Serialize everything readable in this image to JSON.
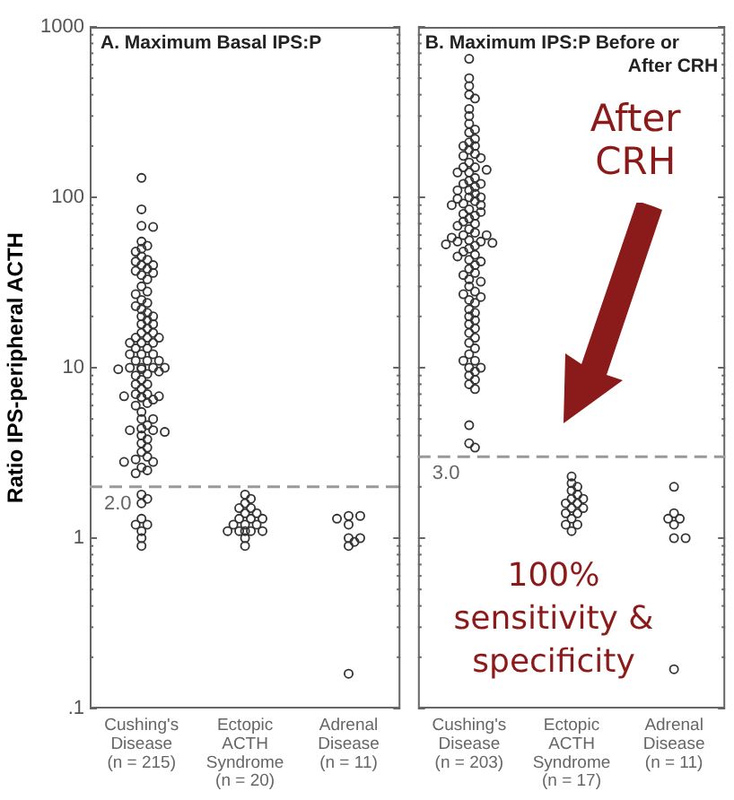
{
  "chart_data": [
    {
      "type": "scatter",
      "title": "A. Maximum Basal IPS:P",
      "ylabel": "Ratio IPS-peripheral ACTH",
      "categories": [
        "Cushing's Disease (n = 215)",
        "Ectopic ACTH Syndrome (n = 20)",
        "Adrenal Disease (n = 11)"
      ],
      "series": [
        {
          "color": "#333333",
          "x": [
            "Cushing's Disease (n = 215)",
            "Cushing's Disease (n = 215)",
            "Cushing's Disease (n = 215)",
            "Cushing's Disease (n = 215)",
            "Cushing's Disease (n = 215)",
            "Cushing's Disease (n = 215)",
            "Cushing's Disease (n = 215)",
            "Cushing's Disease (n = 215)",
            "Cushing's Disease (n = 215)",
            "Cushing's Disease (n = 215)",
            "Cushing's Disease (n = 215)",
            "Cushing's Disease (n = 215)",
            "Cushing's Disease (n = 215)",
            "Cushing's Disease (n = 215)",
            "Cushing's Disease (n = 215)",
            "Cushing's Disease (n = 215)",
            "Cushing's Disease (n = 215)",
            "Cushing's Disease (n = 215)",
            "Cushing's Disease (n = 215)",
            "Cushing's Disease (n = 215)",
            "Cushing's Disease (n = 215)",
            "Cushing's Disease (n = 215)",
            "Cushing's Disease (n = 215)",
            "Cushing's Disease (n = 215)",
            "Cushing's Disease (n = 215)",
            "Cushing's Disease (n = 215)",
            "Cushing's Disease (n = 215)",
            "Cushing's Disease (n = 215)",
            "Cushing's Disease (n = 215)",
            "Cushing's Disease (n = 215)",
            "Cushing's Disease (n = 215)",
            "Cushing's Disease (n = 215)",
            "Cushing's Disease (n = 215)",
            "Cushing's Disease (n = 215)",
            "Cushing's Disease (n = 215)",
            "Cushing's Disease (n = 215)",
            "Cushing's Disease (n = 215)",
            "Cushing's Disease (n = 215)",
            "Cushing's Disease (n = 215)",
            "Cushing's Disease (n = 215)",
            "Cushing's Disease (n = 215)",
            "Cushing's Disease (n = 215)",
            "Cushing's Disease (n = 215)",
            "Cushing's Disease (n = 215)",
            "Cushing's Disease (n = 215)",
            "Cushing's Disease (n = 215)",
            "Cushing's Disease (n = 215)",
            "Cushing's Disease (n = 215)",
            "Cushing's Disease (n = 215)",
            "Cushing's Disease (n = 215)",
            "Cushing's Disease (n = 215)",
            "Cushing's Disease (n = 215)",
            "Cushing's Disease (n = 215)",
            "Cushing's Disease (n = 215)",
            "Cushing's Disease (n = 215)",
            "Cushing's Disease (n = 215)",
            "Cushing's Disease (n = 215)",
            "Cushing's Disease (n = 215)",
            "Cushing's Disease (n = 215)",
            "Cushing's Disease (n = 215)",
            "Cushing's Disease (n = 215)",
            "Cushing's Disease (n = 215)",
            "Cushing's Disease (n = 215)",
            "Cushing's Disease (n = 215)",
            "Cushing's Disease (n = 215)",
            "Cushing's Disease (n = 215)",
            "Cushing's Disease (n = 215)",
            "Cushing's Disease (n = 215)",
            "Cushing's Disease (n = 215)",
            "Cushing's Disease (n = 215)",
            "Cushing's Disease (n = 215)",
            "Cushing's Disease (n = 215)",
            "Cushing's Disease (n = 215)",
            "Cushing's Disease (n = 215)",
            "Cushing's Disease (n = 215)",
            "Cushing's Disease (n = 215)",
            "Cushing's Disease (n = 215)",
            "Cushing's Disease (n = 215)",
            "Cushing's Disease (n = 215)",
            "Cushing's Disease (n = 215)",
            "Cushing's Disease (n = 215)",
            "Cushing's Disease (n = 215)",
            "Cushing's Disease (n = 215)",
            "Cushing's Disease (n = 215)",
            "Cushing's Disease (n = 215)",
            "Cushing's Disease (n = 215)",
            "Cushing's Disease (n = 215)",
            "Cushing's Disease (n = 215)",
            "Cushing's Disease (n = 215)",
            "Cushing's Disease (n = 215)",
            "Cushing's Disease (n = 215)",
            "Cushing's Disease (n = 215)",
            "Cushing's Disease (n = 215)",
            "Cushing's Disease (n = 215)",
            "Cushing's Disease (n = 215)",
            "Cushing's Disease (n = 215)",
            "Cushing's Disease (n = 215)",
            "Cushing's Disease (n = 215)",
            "Cushing's Disease (n = 215)",
            "Ectopic ACTH Syndrome (n = 20)",
            "Ectopic ACTH Syndrome (n = 20)",
            "Ectopic ACTH Syndrome (n = 20)",
            "Ectopic ACTH Syndrome (n = 20)",
            "Ectopic ACTH Syndrome (n = 20)",
            "Ectopic ACTH Syndrome (n = 20)",
            "Ectopic ACTH Syndrome (n = 20)",
            "Ectopic ACTH Syndrome (n = 20)",
            "Ectopic ACTH Syndrome (n = 20)",
            "Ectopic ACTH Syndrome (n = 20)",
            "Ectopic ACTH Syndrome (n = 20)",
            "Ectopic ACTH Syndrome (n = 20)",
            "Ectopic ACTH Syndrome (n = 20)",
            "Ectopic ACTH Syndrome (n = 20)",
            "Ectopic ACTH Syndrome (n = 20)",
            "Ectopic ACTH Syndrome (n = 20)",
            "Ectopic ACTH Syndrome (n = 20)",
            "Ectopic ACTH Syndrome (n = 20)",
            "Ectopic ACTH Syndrome (n = 20)",
            "Ectopic ACTH Syndrome (n = 20)",
            "Adrenal Disease (n = 11)",
            "Adrenal Disease (n = 11)",
            "Adrenal Disease (n = 11)",
            "Adrenal Disease (n = 11)",
            "Adrenal Disease (n = 11)",
            "Adrenal Disease (n = 11)",
            "Adrenal Disease (n = 11)",
            "Adrenal Disease (n = 11)",
            "Adrenal Disease (n = 11)"
          ],
          "values": [
            130,
            85,
            68,
            67,
            55,
            52,
            50,
            48,
            45,
            43,
            42,
            40,
            40,
            38,
            37,
            36,
            35,
            33,
            30,
            28,
            27,
            25,
            24,
            23,
            22,
            21,
            20,
            20,
            19,
            18,
            18,
            17,
            16,
            16,
            15,
            15,
            15,
            14,
            14,
            14,
            13,
            13,
            12,
            12,
            12,
            11,
            11,
            11,
            10,
            10,
            10,
            10,
            9.8,
            9.8,
            9.5,
            9.2,
            9,
            8.5,
            8,
            8,
            7.5,
            7,
            7,
            6.8,
            6.8,
            6.7,
            6.7,
            6.5,
            6.2,
            6,
            5.5,
            5,
            5,
            4.6,
            4.4,
            4.3,
            4.3,
            4.2,
            4,
            3.8,
            3.6,
            3.4,
            3.2,
            3,
            2.9,
            2.8,
            2.8,
            2.6,
            2.5,
            2.4,
            1.8,
            1.7,
            1.6,
            1.3,
            1.2,
            1.2,
            1.1,
            1,
            0.9,
            1.8,
            1.7,
            1.6,
            1.5,
            1.5,
            1.4,
            1.4,
            1.3,
            1.3,
            1.3,
            1.2,
            1.2,
            1.2,
            1.1,
            1.1,
            1.1,
            1.1,
            1.1,
            1,
            0.9,
            1.35,
            1.35,
            1.3,
            1.2,
            1,
            1,
            0.95,
            0.9,
            0.16
          ]
        }
      ],
      "log": "y",
      "ylim": [
        0.1,
        1000
      ],
      "yticks": [
        {
          "value": 0.1,
          "label": ".1"
        },
        {
          "value": 0.2,
          "label": null
        },
        {
          "value": 0.3,
          "label": null
        },
        {
          "value": 0.4,
          "label": null
        },
        {
          "value": 0.5,
          "label": null
        },
        {
          "value": 0.6,
          "label": null
        },
        {
          "value": 0.7,
          "label": null
        },
        {
          "value": 0.8,
          "label": null
        },
        {
          "value": 0.9,
          "label": null
        },
        1,
        {
          "value": 2,
          "label": null
        },
        {
          "value": 3,
          "label": null
        },
        {
          "value": 4,
          "label": null
        },
        {
          "value": 5,
          "label": null
        },
        {
          "value": 6,
          "label": null
        },
        {
          "value": 7,
          "label": null
        },
        {
          "value": 8,
          "label": null
        },
        {
          "value": 9,
          "label": null
        },
        10,
        {
          "value": 20,
          "label": null
        },
        {
          "value": 30,
          "label": null
        },
        {
          "value": 40,
          "label": null
        },
        {
          "value": 50,
          "label": null
        },
        {
          "value": 60,
          "label": null
        },
        {
          "value": 70,
          "label": null
        },
        {
          "value": 80,
          "label": null
        },
        {
          "value": 90,
          "label": null
        },
        100,
        {
          "value": 200,
          "label": null
        },
        {
          "value": 300,
          "label": null
        },
        {
          "value": 400,
          "label": null
        },
        {
          "value": 500,
          "label": null
        },
        {
          "value": 600,
          "label": null
        },
        {
          "value": 700,
          "label": null
        },
        {
          "value": 800,
          "label": null
        },
        {
          "value": 900,
          "label": null
        },
        1000
      ],
      "ref_lines": [
        {
          "axis": "y",
          "value": 2,
          "label": "2.0",
          "color": "#999999",
          "line_style": "dashed"
        }
      ],
      "marker": "circle"
    },
    {
      "type": "scatter",
      "title": "B. Maximum IPS:P Before or After CRH",
      "categories": [
        "Cushing's Disease (n = 203)",
        "Ectopic ACTH Syndrome (n = 17)",
        "Adrenal Disease (n = 11)"
      ],
      "series": [
        {
          "color": "#333333",
          "x": [
            "Cushing's Disease (n = 203)",
            "Cushing's Disease (n = 203)",
            "Cushing's Disease (n = 203)",
            "Cushing's Disease (n = 203)",
            "Cushing's Disease (n = 203)",
            "Cushing's Disease (n = 203)",
            "Cushing's Disease (n = 203)",
            "Cushing's Disease (n = 203)",
            "Cushing's Disease (n = 203)",
            "Cushing's Disease (n = 203)",
            "Cushing's Disease (n = 203)",
            "Cushing's Disease (n = 203)",
            "Cushing's Disease (n = 203)",
            "Cushing's Disease (n = 203)",
            "Cushing's Disease (n = 203)",
            "Cushing's Disease (n = 203)",
            "Cushing's Disease (n = 203)",
            "Cushing's Disease (n = 203)",
            "Cushing's Disease (n = 203)",
            "Cushing's Disease (n = 203)",
            "Cushing's Disease (n = 203)",
            "Cushing's Disease (n = 203)",
            "Cushing's Disease (n = 203)",
            "Cushing's Disease (n = 203)",
            "Cushing's Disease (n = 203)",
            "Cushing's Disease (n = 203)",
            "Cushing's Disease (n = 203)",
            "Cushing's Disease (n = 203)",
            "Cushing's Disease (n = 203)",
            "Cushing's Disease (n = 203)",
            "Cushing's Disease (n = 203)",
            "Cushing's Disease (n = 203)",
            "Cushing's Disease (n = 203)",
            "Cushing's Disease (n = 203)",
            "Cushing's Disease (n = 203)",
            "Cushing's Disease (n = 203)",
            "Cushing's Disease (n = 203)",
            "Cushing's Disease (n = 203)",
            "Cushing's Disease (n = 203)",
            "Cushing's Disease (n = 203)",
            "Cushing's Disease (n = 203)",
            "Cushing's Disease (n = 203)",
            "Cushing's Disease (n = 203)",
            "Cushing's Disease (n = 203)",
            "Cushing's Disease (n = 203)",
            "Cushing's Disease (n = 203)",
            "Cushing's Disease (n = 203)",
            "Cushing's Disease (n = 203)",
            "Cushing's Disease (n = 203)",
            "Cushing's Disease (n = 203)",
            "Cushing's Disease (n = 203)",
            "Cushing's Disease (n = 203)",
            "Cushing's Disease (n = 203)",
            "Cushing's Disease (n = 203)",
            "Cushing's Disease (n = 203)",
            "Cushing's Disease (n = 203)",
            "Cushing's Disease (n = 203)",
            "Cushing's Disease (n = 203)",
            "Cushing's Disease (n = 203)",
            "Cushing's Disease (n = 203)",
            "Cushing's Disease (n = 203)",
            "Cushing's Disease (n = 203)",
            "Cushing's Disease (n = 203)",
            "Cushing's Disease (n = 203)",
            "Cushing's Disease (n = 203)",
            "Cushing's Disease (n = 203)",
            "Cushing's Disease (n = 203)",
            "Cushing's Disease (n = 203)",
            "Cushing's Disease (n = 203)",
            "Cushing's Disease (n = 203)",
            "Cushing's Disease (n = 203)",
            "Cushing's Disease (n = 203)",
            "Cushing's Disease (n = 203)",
            "Cushing's Disease (n = 203)",
            "Cushing's Disease (n = 203)",
            "Cushing's Disease (n = 203)",
            "Cushing's Disease (n = 203)",
            "Cushing's Disease (n = 203)",
            "Cushing's Disease (n = 203)",
            "Cushing's Disease (n = 203)",
            "Cushing's Disease (n = 203)",
            "Cushing's Disease (n = 203)",
            "Cushing's Disease (n = 203)",
            "Cushing's Disease (n = 203)",
            "Cushing's Disease (n = 203)",
            "Cushing's Disease (n = 203)",
            "Cushing's Disease (n = 203)",
            "Cushing's Disease (n = 203)",
            "Cushing's Disease (n = 203)",
            "Cushing's Disease (n = 203)",
            "Cushing's Disease (n = 203)",
            "Cushing's Disease (n = 203)",
            "Cushing's Disease (n = 203)",
            "Cushing's Disease (n = 203)",
            "Cushing's Disease (n = 203)",
            "Cushing's Disease (n = 203)",
            "Cushing's Disease (n = 203)",
            "Cushing's Disease (n = 203)",
            "Cushing's Disease (n = 203)",
            "Ectopic ACTH Syndrome (n = 17)",
            "Ectopic ACTH Syndrome (n = 17)",
            "Ectopic ACTH Syndrome (n = 17)",
            "Ectopic ACTH Syndrome (n = 17)",
            "Ectopic ACTH Syndrome (n = 17)",
            "Ectopic ACTH Syndrome (n = 17)",
            "Ectopic ACTH Syndrome (n = 17)",
            "Ectopic ACTH Syndrome (n = 17)",
            "Ectopic ACTH Syndrome (n = 17)",
            "Ectopic ACTH Syndrome (n = 17)",
            "Ectopic ACTH Syndrome (n = 17)",
            "Ectopic ACTH Syndrome (n = 17)",
            "Ectopic ACTH Syndrome (n = 17)",
            "Ectopic ACTH Syndrome (n = 17)",
            "Ectopic ACTH Syndrome (n = 17)",
            "Ectopic ACTH Syndrome (n = 17)",
            "Ectopic ACTH Syndrome (n = 17)",
            "Adrenal Disease (n = 11)",
            "Adrenal Disease (n = 11)",
            "Adrenal Disease (n = 11)",
            "Adrenal Disease (n = 11)",
            "Adrenal Disease (n = 11)",
            "Adrenal Disease (n = 11)",
            "Adrenal Disease (n = 11)",
            "Adrenal Disease (n = 11)"
          ],
          "values": [
            650,
            500,
            450,
            400,
            380,
            330,
            300,
            270,
            250,
            240,
            220,
            210,
            200,
            200,
            190,
            180,
            175,
            170,
            160,
            150,
            150,
            145,
            140,
            140,
            130,
            125,
            120,
            120,
            115,
            110,
            110,
            105,
            100,
            100,
            98,
            95,
            92,
            90,
            90,
            85,
            82,
            80,
            78,
            75,
            72,
            70,
            68,
            65,
            62,
            60,
            60,
            58,
            56,
            55,
            55,
            54,
            53,
            52,
            50,
            48,
            46,
            45,
            43,
            42,
            40,
            38,
            36,
            35,
            33,
            32,
            30,
            28,
            27,
            26,
            25,
            24,
            22,
            21,
            20,
            19,
            18,
            17,
            16,
            15,
            14,
            13,
            12,
            11,
            11,
            10,
            10,
            9.5,
            9,
            8.5,
            8,
            7.5,
            4.6,
            3.6,
            3.4,
            2.3,
            2.1,
            2,
            1.9,
            1.8,
            1.7,
            1.7,
            1.6,
            1.6,
            1.5,
            1.5,
            1.4,
            1.4,
            1.3,
            1.2,
            1.2,
            1.1,
            2,
            1.4,
            1.3,
            1.3,
            1.2,
            1,
            1,
            0.17
          ]
        }
      ],
      "log": "y",
      "ylim": [
        0.1,
        1000
      ],
      "tick_labels": "x",
      "yticks": [
        0.1,
        {
          "value": 0.2,
          "label": null
        },
        {
          "value": 0.3,
          "label": null
        },
        {
          "value": 0.4,
          "label": null
        },
        {
          "value": 0.5,
          "label": null
        },
        {
          "value": 0.6,
          "label": null
        },
        {
          "value": 0.7,
          "label": null
        },
        {
          "value": 0.8,
          "label": null
        },
        {
          "value": 0.9,
          "label": null
        },
        1,
        {
          "value": 2,
          "label": null
        },
        {
          "value": 3,
          "label": null
        },
        {
          "value": 4,
          "label": null
        },
        {
          "value": 5,
          "label": null
        },
        {
          "value": 6,
          "label": null
        },
        {
          "value": 7,
          "label": null
        },
        {
          "value": 8,
          "label": null
        },
        {
          "value": 9,
          "label": null
        },
        10,
        {
          "value": 20,
          "label": null
        },
        {
          "value": 30,
          "label": null
        },
        {
          "value": 40,
          "label": null
        },
        {
          "value": 50,
          "label": null
        },
        {
          "value": 60,
          "label": null
        },
        {
          "value": 70,
          "label": null
        },
        {
          "value": 80,
          "label": null
        },
        {
          "value": 90,
          "label": null
        },
        100,
        {
          "value": 200,
          "label": null
        },
        {
          "value": 300,
          "label": null
        },
        {
          "value": 400,
          "label": null
        },
        {
          "value": 500,
          "label": null
        },
        {
          "value": 600,
          "label": null
        },
        {
          "value": 700,
          "label": null
        },
        {
          "value": 800,
          "label": null
        },
        {
          "value": 900,
          "label": null
        },
        1000
      ],
      "ref_lines": [
        {
          "axis": "y",
          "value": 3,
          "label": "3.0",
          "color": "#999999",
          "line_style": "dashed"
        }
      ],
      "annotations": [
        "After CRH",
        "100% sensitivity & specificity"
      ],
      "marker": "circle"
    }
  ]
}
